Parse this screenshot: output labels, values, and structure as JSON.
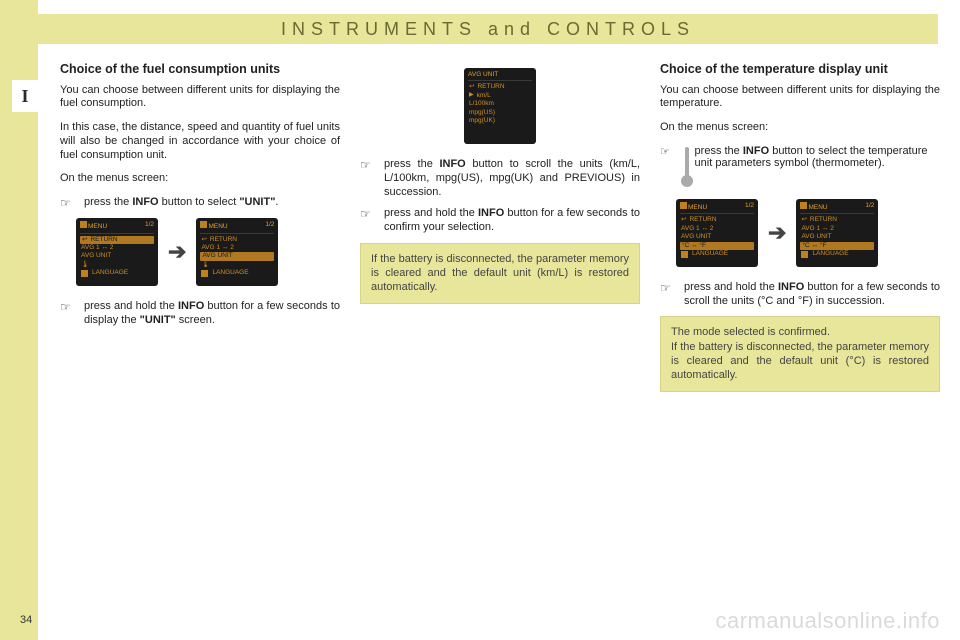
{
  "header": {
    "title": "INSTRUMENTS  and  CONTROLS"
  },
  "tab": "I",
  "page_number": "34",
  "watermark": "carmanualsonline.info",
  "col1": {
    "h": "Choice of the fuel consumption units",
    "p1": "You can choose between different units for displaying the fuel consumption.",
    "p2": "In this case, the distance, speed and quantity of fuel units will also be changed in accordance with your choice of fuel consumption unit.",
    "p3": "On the menus screen:",
    "b1_pre": "press the ",
    "b1_bold": "INFO",
    "b1_mid": " button to select ",
    "b1_quote": "\"UNIT\"",
    "b1_post": ".",
    "b2_pre": "press and hold the ",
    "b2_bold": "INFO",
    "b2_mid": " button for a few seconds to display the ",
    "b2_quote": "\"UNIT\"",
    "b2_post": " screen."
  },
  "col2": {
    "b1_pre": "press the ",
    "b1_bold": "INFO",
    "b1_post": " button to scroll the units (km/L, L/100km, mpg(US), mpg(UK) and PREVIOUS) in succession.",
    "b2_pre": "press and hold the ",
    "b2_bold": "INFO",
    "b2_post": " button for a few seconds to confirm your selection.",
    "note": "If the battery is disconnected, the parameter memory is cleared and the default unit (km/L) is restored automatically."
  },
  "col3": {
    "h": "Choice of the temperature display unit",
    "p1": "You can choose between different units for displaying the temperature.",
    "p2": "On the menus screen:",
    "b1_pre": "press the ",
    "b1_bold": "INFO",
    "b1_post": " button to select the temperature unit parameters symbol (thermometer).",
    "b2_pre": "press and hold the ",
    "b2_bold": "INFO",
    "b2_post": " button for a few seconds to scroll the units (°C and °F) in succession.",
    "note_l1": "The mode selected is confirmed.",
    "note_l2": "If the battery is disconnected, the parameter memory is cleared and the default unit (°C) is restored automatically."
  },
  "screens": {
    "menu_title": "MENU",
    "frac": "1/2",
    "return": "RETURN",
    "avg12": "AVG   1 ↔ 2",
    "avgunit": "AVG UNIT",
    "tempunit": "°C ↔ °F",
    "lang": "LANGUAGE",
    "unit_km_l": "km/L",
    "unit_l100": "L/100km",
    "unit_mpg_us": "mpg(US)",
    "unit_mpg_uk": "mpg(UK)"
  },
  "hand": "☞"
}
